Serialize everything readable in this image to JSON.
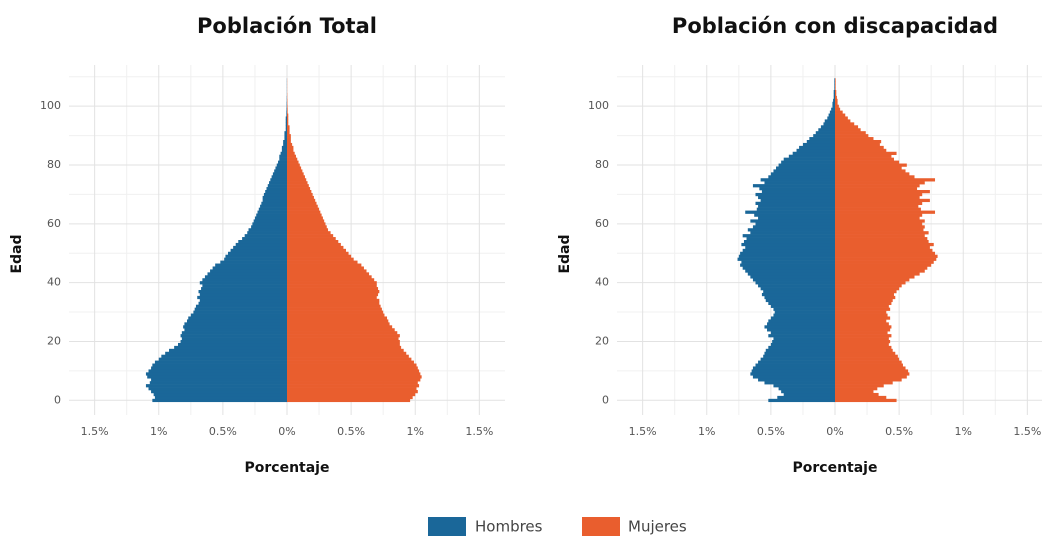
{
  "chart_data": [
    {
      "type": "pyramid",
      "title": "Población Total",
      "x_label": "Porcentaje",
      "y_label": "Edad",
      "categories": [
        0,
        1,
        2,
        3,
        4,
        5,
        6,
        7,
        8,
        9,
        10,
        11,
        12,
        13,
        14,
        15,
        16,
        17,
        18,
        19,
        20,
        21,
        22,
        23,
        24,
        25,
        26,
        27,
        28,
        29,
        30,
        31,
        32,
        33,
        34,
        35,
        36,
        37,
        38,
        39,
        40,
        41,
        42,
        43,
        44,
        45,
        46,
        47,
        48,
        49,
        50,
        51,
        52,
        53,
        54,
        55,
        56,
        57,
        58,
        59,
        60,
        61,
        62,
        63,
        64,
        65,
        66,
        67,
        68,
        69,
        70,
        71,
        72,
        73,
        74,
        75,
        76,
        77,
        78,
        79,
        80,
        81,
        82,
        83,
        84,
        85,
        86,
        87,
        88,
        89,
        90,
        91,
        92,
        93,
        94,
        95,
        96,
        97,
        98,
        99,
        100,
        101,
        102,
        103,
        104,
        105,
        106,
        107,
        108,
        109
      ],
      "series": [
        {
          "name": "Hombres",
          "color": "#1a6799",
          "values": [
            -1.05,
            -1.03,
            -1.04,
            -1.06,
            -1.08,
            -1.1,
            -1.07,
            -1.06,
            -1.09,
            -1.1,
            -1.08,
            -1.06,
            -1.05,
            -1.03,
            -1.0,
            -0.98,
            -0.95,
            -0.92,
            -0.88,
            -0.85,
            -0.83,
            -0.82,
            -0.83,
            -0.82,
            -0.8,
            -0.81,
            -0.8,
            -0.78,
            -0.77,
            -0.75,
            -0.73,
            -0.72,
            -0.71,
            -0.69,
            -0.68,
            -0.7,
            -0.68,
            -0.69,
            -0.67,
            -0.66,
            -0.68,
            -0.66,
            -0.64,
            -0.62,
            -0.6,
            -0.58,
            -0.56,
            -0.52,
            -0.49,
            -0.48,
            -0.46,
            -0.44,
            -0.42,
            -0.4,
            -0.38,
            -0.35,
            -0.33,
            -0.31,
            -0.3,
            -0.28,
            -0.27,
            -0.26,
            -0.25,
            -0.24,
            -0.23,
            -0.22,
            -0.21,
            -0.2,
            -0.19,
            -0.19,
            -0.18,
            -0.17,
            -0.16,
            -0.15,
            -0.14,
            -0.13,
            -0.12,
            -0.11,
            -0.1,
            -0.09,
            -0.08,
            -0.07,
            -0.06,
            -0.06,
            -0.05,
            -0.04,
            -0.04,
            -0.03,
            -0.03,
            -0.02,
            -0.02,
            -0.02,
            -0.01,
            -0.01,
            -0.01,
            -0.01,
            -0.01,
            -0.005,
            -0.005,
            -0.004,
            -0.003,
            -0.003,
            -0.002,
            -0.002,
            -0.001,
            -0.001,
            -0.001,
            -0.001,
            -0.001,
            -0.001
          ]
        },
        {
          "name": "Mujeres",
          "color": "#e95e2e",
          "values": [
            0.96,
            0.98,
            1.0,
            1.02,
            1.01,
            1.03,
            1.02,
            1.04,
            1.05,
            1.04,
            1.03,
            1.02,
            1.01,
            0.99,
            0.97,
            0.95,
            0.93,
            0.91,
            0.89,
            0.88,
            0.88,
            0.87,
            0.88,
            0.86,
            0.84,
            0.82,
            0.8,
            0.79,
            0.78,
            0.76,
            0.75,
            0.74,
            0.73,
            0.72,
            0.72,
            0.7,
            0.71,
            0.72,
            0.71,
            0.7,
            0.7,
            0.68,
            0.66,
            0.64,
            0.62,
            0.6,
            0.58,
            0.55,
            0.52,
            0.5,
            0.48,
            0.46,
            0.44,
            0.42,
            0.4,
            0.38,
            0.36,
            0.34,
            0.32,
            0.31,
            0.3,
            0.29,
            0.28,
            0.27,
            0.26,
            0.25,
            0.24,
            0.23,
            0.22,
            0.21,
            0.2,
            0.19,
            0.18,
            0.17,
            0.16,
            0.15,
            0.14,
            0.13,
            0.12,
            0.11,
            0.1,
            0.09,
            0.08,
            0.07,
            0.06,
            0.05,
            0.05,
            0.04,
            0.03,
            0.03,
            0.03,
            0.02,
            0.02,
            0.02,
            0.01,
            0.01,
            0.01,
            0.01,
            0.005,
            0.005,
            0.004,
            0.003,
            0.003,
            0.002,
            0.002,
            0.001,
            0.001,
            0.001,
            0.001,
            0.001
          ]
        }
      ],
      "xlim": [
        -1.7,
        1.7
      ],
      "ylim": [
        -5,
        114
      ],
      "xticks": [
        {
          "value": -1.5,
          "label": "1.5%"
        },
        {
          "value": -1,
          "label": "1%"
        },
        {
          "value": -0.5,
          "label": "0.5%"
        },
        {
          "value": 0,
          "label": "0%"
        },
        {
          "value": 0.5,
          "label": "0.5%"
        },
        {
          "value": 1,
          "label": "1%"
        },
        {
          "value": 1.5,
          "label": "1.5%"
        }
      ],
      "yticks": [
        0,
        20,
        40,
        60,
        80,
        100
      ],
      "grid": true
    },
    {
      "type": "pyramid",
      "title": "Población con discapacidad",
      "x_label": "Porcentaje",
      "y_label": "Edad",
      "categories": [
        0,
        1,
        2,
        3,
        4,
        5,
        6,
        7,
        8,
        9,
        10,
        11,
        12,
        13,
        14,
        15,
        16,
        17,
        18,
        19,
        20,
        21,
        22,
        23,
        24,
        25,
        26,
        27,
        28,
        29,
        30,
        31,
        32,
        33,
        34,
        35,
        36,
        37,
        38,
        39,
        40,
        41,
        42,
        43,
        44,
        45,
        46,
        47,
        48,
        49,
        50,
        51,
        52,
        53,
        54,
        55,
        56,
        57,
        58,
        59,
        60,
        61,
        62,
        63,
        64,
        65,
        66,
        67,
        68,
        69,
        70,
        71,
        72,
        73,
        74,
        75,
        76,
        77,
        78,
        79,
        80,
        81,
        82,
        83,
        84,
        85,
        86,
        87,
        88,
        89,
        90,
        91,
        92,
        93,
        94,
        95,
        96,
        97,
        98,
        99,
        100,
        101,
        102,
        103,
        104,
        105,
        106,
        107,
        108,
        109
      ],
      "series": [
        {
          "color": "#1a6799",
          "values": [
            -0.52,
            -0.45,
            -0.4,
            -0.42,
            -0.44,
            -0.48,
            -0.55,
            -0.6,
            -0.64,
            -0.66,
            -0.65,
            -0.64,
            -0.62,
            -0.6,
            -0.58,
            -0.56,
            -0.55,
            -0.54,
            -0.52,
            -0.5,
            -0.49,
            -0.48,
            -0.52,
            -0.5,
            -0.53,
            -0.55,
            -0.53,
            -0.52,
            -0.5,
            -0.48,
            -0.47,
            -0.48,
            -0.5,
            -0.52,
            -0.54,
            -0.55,
            -0.57,
            -0.56,
            -0.58,
            -0.6,
            -0.62,
            -0.64,
            -0.66,
            -0.68,
            -0.7,
            -0.72,
            -0.74,
            -0.73,
            -0.76,
            -0.75,
            -0.74,
            -0.72,
            -0.7,
            -0.73,
            -0.71,
            -0.69,
            -0.72,
            -0.66,
            -0.68,
            -0.64,
            -0.62,
            -0.66,
            -0.6,
            -0.63,
            -0.7,
            -0.61,
            -0.6,
            -0.62,
            -0.58,
            -0.6,
            -0.62,
            -0.57,
            -0.59,
            -0.64,
            -0.55,
            -0.58,
            -0.52,
            -0.5,
            -0.48,
            -0.46,
            -0.44,
            -0.42,
            -0.4,
            -0.36,
            -0.33,
            -0.3,
            -0.28,
            -0.25,
            -0.22,
            -0.2,
            -0.17,
            -0.15,
            -0.13,
            -0.11,
            -0.09,
            -0.08,
            -0.06,
            -0.05,
            -0.04,
            -0.03,
            -0.02,
            -0.02,
            -0.015,
            -0.01,
            -0.01,
            -0.01,
            -0.005,
            -0.005,
            -0.005,
            -0.005
          ]
        },
        {
          "color": "#e95e2e",
          "values": [
            0.48,
            0.4,
            0.34,
            0.3,
            0.33,
            0.38,
            0.45,
            0.52,
            0.56,
            0.58,
            0.57,
            0.55,
            0.53,
            0.52,
            0.5,
            0.49,
            0.47,
            0.45,
            0.44,
            0.42,
            0.43,
            0.42,
            0.44,
            0.41,
            0.43,
            0.44,
            0.42,
            0.4,
            0.43,
            0.41,
            0.4,
            0.43,
            0.42,
            0.44,
            0.45,
            0.47,
            0.46,
            0.48,
            0.5,
            0.52,
            0.55,
            0.58,
            0.62,
            0.66,
            0.7,
            0.72,
            0.75,
            0.77,
            0.79,
            0.8,
            0.78,
            0.76,
            0.74,
            0.77,
            0.73,
            0.72,
            0.7,
            0.73,
            0.69,
            0.7,
            0.68,
            0.7,
            0.66,
            0.68,
            0.78,
            0.67,
            0.65,
            0.68,
            0.74,
            0.66,
            0.68,
            0.74,
            0.64,
            0.66,
            0.7,
            0.78,
            0.62,
            0.58,
            0.55,
            0.52,
            0.56,
            0.5,
            0.46,
            0.44,
            0.48,
            0.4,
            0.38,
            0.35,
            0.36,
            0.3,
            0.26,
            0.24,
            0.2,
            0.18,
            0.15,
            0.12,
            0.1,
            0.08,
            0.06,
            0.04,
            0.03,
            0.02,
            0.02,
            0.015,
            0.01,
            0.01,
            0.005,
            0.005,
            0.005,
            0.005
          ]
        }
      ],
      "xlim": [
        -1.7,
        1.7
      ],
      "ylim": [
        -5,
        114
      ],
      "xticks": [
        {
          "value": -1.5,
          "label": "1.5%"
        },
        {
          "value": -1,
          "label": "1%"
        },
        {
          "value": -0.5,
          "label": "0.5%"
        },
        {
          "value": 0,
          "label": "0%"
        },
        {
          "value": 0.5,
          "label": "0.5%"
        },
        {
          "value": 1,
          "label": "1%"
        },
        {
          "value": 1.5,
          "label": "1.5%"
        }
      ],
      "yticks": [
        0,
        20,
        40,
        60,
        80,
        100
      ],
      "grid": true
    }
  ]
}
